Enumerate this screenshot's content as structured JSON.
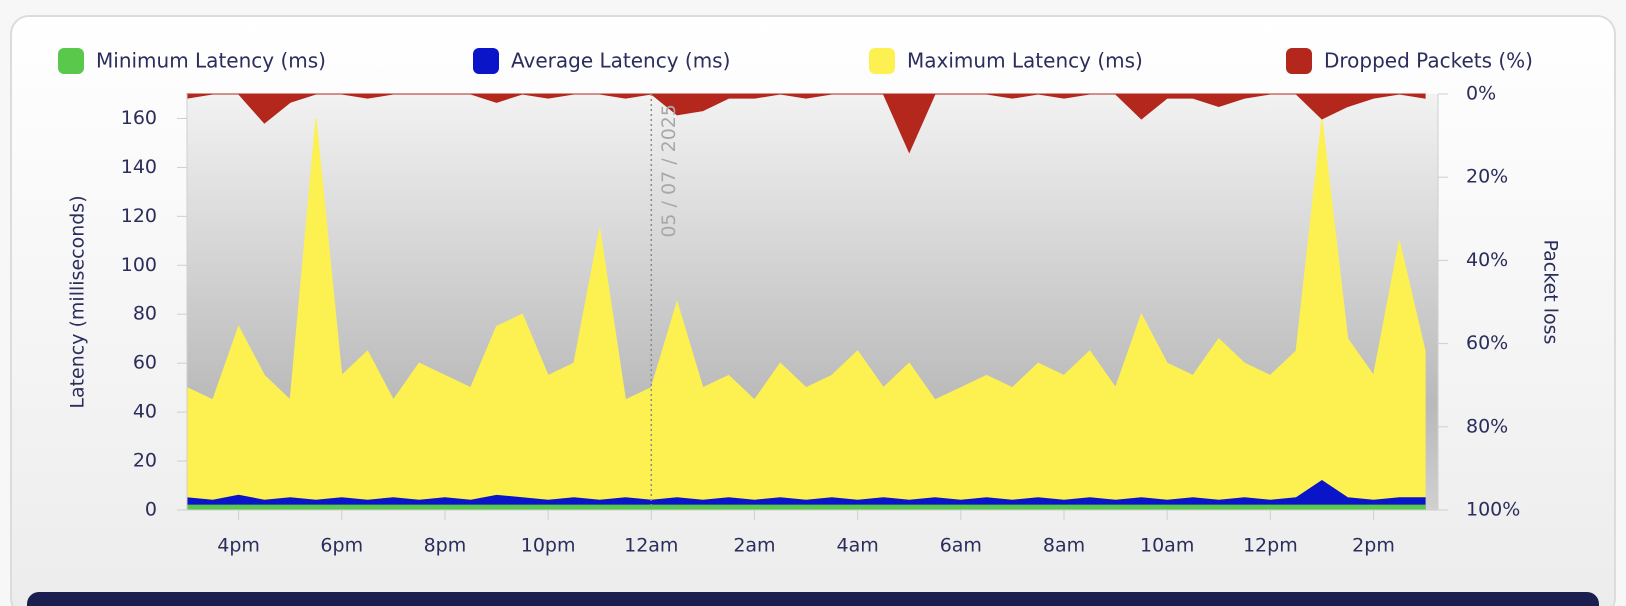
{
  "chart_data": {
    "type": "area",
    "x": [
      15,
      15.5,
      16,
      16.5,
      17,
      17.5,
      18,
      18.5,
      19,
      19.5,
      20,
      20.5,
      21,
      21.5,
      22,
      22.5,
      23,
      23.5,
      24,
      24.5,
      25,
      25.5,
      26,
      26.5,
      27,
      27.5,
      28,
      28.5,
      29,
      29.5,
      30,
      30.5,
      31,
      31.5,
      32,
      32.5,
      33,
      33.5,
      34,
      34.5,
      35,
      35.5,
      36,
      36.5,
      37,
      37.5,
      38,
      38.5,
      39
    ],
    "xlim": [
      15,
      39.25
    ],
    "xticks": [
      {
        "value": 16,
        "label": "4pm"
      },
      {
        "value": 18,
        "label": "6pm"
      },
      {
        "value": 20,
        "label": "8pm"
      },
      {
        "value": 22,
        "label": "10pm"
      },
      {
        "value": 24,
        "label": "12am"
      },
      {
        "value": 26,
        "label": "2am"
      },
      {
        "value": 28,
        "label": "4am"
      },
      {
        "value": 30,
        "label": "6am"
      },
      {
        "value": 32,
        "label": "8am"
      },
      {
        "value": 34,
        "label": "10am"
      },
      {
        "value": 36,
        "label": "12pm"
      },
      {
        "value": 38,
        "label": "2pm"
      }
    ],
    "ylabel": "Latency  (milliseconds)",
    "ylim": [
      0,
      170
    ],
    "yticks": [
      0,
      20,
      40,
      60,
      80,
      100,
      120,
      140,
      160
    ],
    "y2label": "Packet loss",
    "y2lim": [
      100,
      0
    ],
    "y2ticks": [
      {
        "value": 0,
        "label": "0%"
      },
      {
        "value": 20,
        "label": "20%"
      },
      {
        "value": 40,
        "label": "40%"
      },
      {
        "value": 60,
        "label": "60%"
      },
      {
        "value": 80,
        "label": "80%"
      },
      {
        "value": 100,
        "label": "100%"
      }
    ],
    "annotation": {
      "x": 24,
      "label": "05 / 07 / 2025"
    },
    "series": [
      {
        "name": "Maximum Latency (ms)",
        "color": "#fdf152",
        "values": [
          50,
          45,
          75,
          55,
          45,
          160,
          55,
          65,
          45,
          60,
          55,
          50,
          75,
          80,
          55,
          60,
          115,
          45,
          50,
          85,
          50,
          55,
          45,
          60,
          50,
          55,
          65,
          50,
          60,
          45,
          50,
          55,
          50,
          60,
          55,
          65,
          50,
          80,
          60,
          55,
          70,
          60,
          55,
          65,
          160,
          70,
          55,
          110,
          65
        ]
      },
      {
        "name": "Average Latency (ms)",
        "color": "#0a14c8",
        "values": [
          5,
          4,
          6,
          4,
          5,
          4,
          5,
          4,
          5,
          4,
          5,
          4,
          6,
          5,
          4,
          5,
          4,
          5,
          4,
          5,
          4,
          5,
          4,
          5,
          4,
          5,
          4,
          5,
          4,
          5,
          4,
          5,
          4,
          5,
          4,
          5,
          4,
          5,
          4,
          5,
          4,
          5,
          4,
          5,
          12,
          5,
          4,
          5,
          5
        ]
      },
      {
        "name": "Minimum Latency (ms)",
        "color": "#5ac84b",
        "values": [
          2,
          2,
          2,
          2,
          2,
          2,
          2,
          2,
          2,
          2,
          2,
          2,
          2,
          2,
          2,
          2,
          2,
          2,
          2,
          2,
          2,
          2,
          2,
          2,
          2,
          2,
          2,
          2,
          2,
          2,
          2,
          2,
          2,
          2,
          2,
          2,
          2,
          2,
          2,
          2,
          2,
          2,
          2,
          2,
          2,
          2,
          2,
          2,
          2
        ]
      },
      {
        "name": "Dropped Packets (%)",
        "color": "#b3271c",
        "axis": "y2",
        "values": [
          1,
          0,
          0,
          7,
          2,
          0,
          0,
          1,
          0,
          0,
          0,
          0,
          2,
          0,
          1,
          0,
          0,
          1,
          0,
          5,
          4,
          1,
          1,
          0,
          1,
          0,
          0,
          0,
          14,
          0,
          0,
          0,
          1,
          0,
          1,
          0,
          0,
          6,
          1,
          1,
          3,
          1,
          0,
          0,
          6,
          3,
          1,
          0,
          1
        ]
      }
    ],
    "legend_order": [
      "Minimum Latency (ms)",
      "Average Latency (ms)",
      "Maximum Latency (ms)",
      "Dropped Packets (%)"
    ]
  }
}
